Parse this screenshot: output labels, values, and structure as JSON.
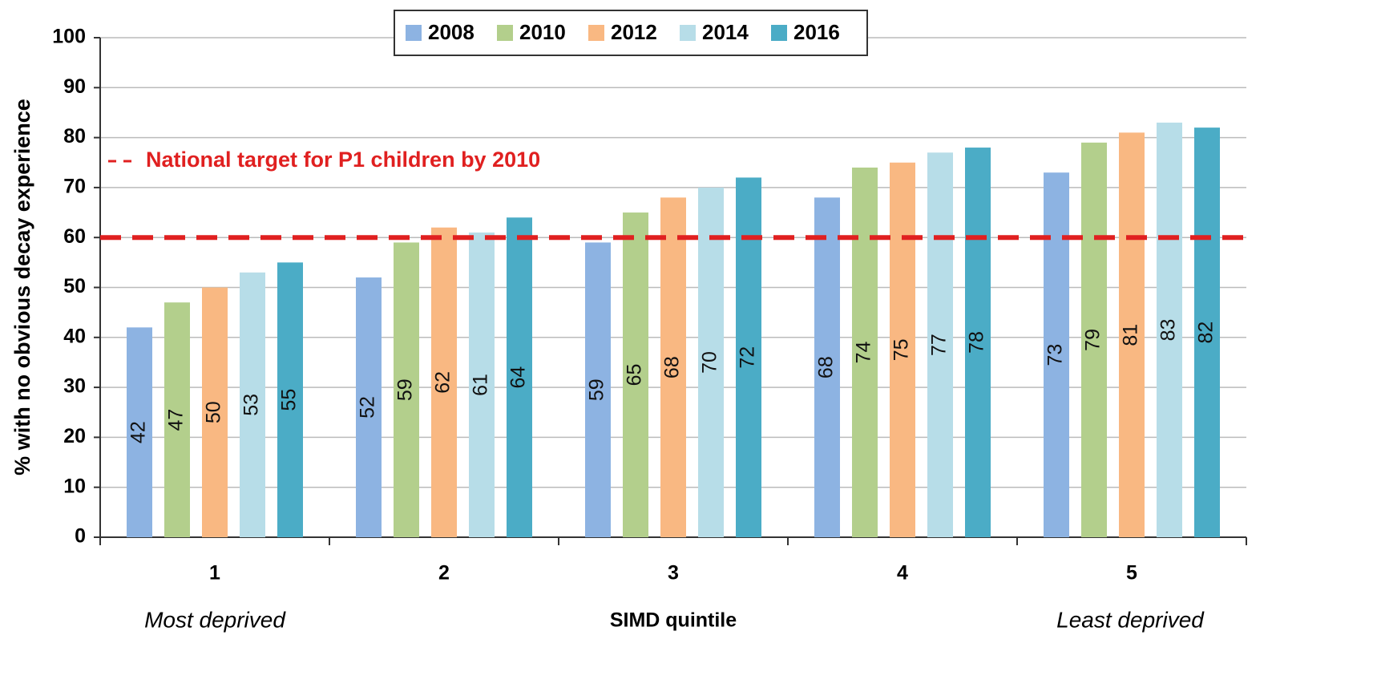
{
  "chart_data": {
    "type": "bar",
    "categories": [
      "1",
      "2",
      "3",
      "4",
      "5"
    ],
    "series": [
      {
        "name": "2008",
        "color": "#8db3e2",
        "values": [
          42,
          52,
          59,
          68,
          73
        ]
      },
      {
        "name": "2010",
        "color": "#b3cf8c",
        "values": [
          47,
          59,
          65,
          74,
          79
        ]
      },
      {
        "name": "2012",
        "color": "#f9b882",
        "values": [
          50,
          62,
          68,
          75,
          81
        ]
      },
      {
        "name": "2014",
        "color": "#b7dde8",
        "values": [
          53,
          61,
          70,
          77,
          83
        ]
      },
      {
        "name": "2016",
        "color": "#4bacc6",
        "values": [
          55,
          64,
          72,
          78,
          82
        ]
      }
    ],
    "ylabel": "% with no obvious decay experience",
    "xlabel": "SIMD quintile",
    "ylim": [
      0,
      100
    ],
    "yticks": [
      0,
      10,
      20,
      30,
      40,
      50,
      60,
      70,
      80,
      90,
      100
    ],
    "grid": true,
    "reference_line": {
      "value": 60,
      "label": "National target for P1 children by 2010",
      "color": "#e02020"
    },
    "annotations": [
      "Most deprived",
      "Least deprived"
    ],
    "legend": "top"
  }
}
